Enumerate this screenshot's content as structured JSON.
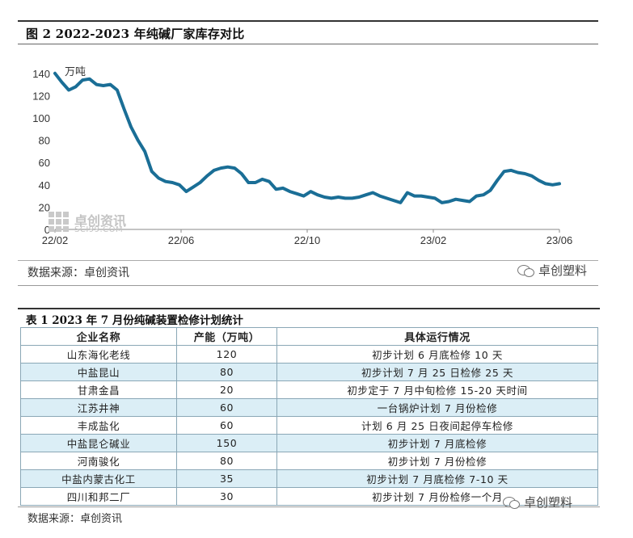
{
  "figure": {
    "title": "图 2   2022-2023 年纯碱厂家库存对比",
    "source": "数据来源：卓创资讯",
    "watermark_sci_cn": "卓创资讯",
    "watermark_sci_en": "SCI99.COM",
    "watermark_wechat": "卓创塑料"
  },
  "chart_data": {
    "type": "line",
    "title": "2022-2023 年纯碱厂家库存对比",
    "ylabel": "万吨",
    "ylim": [
      0,
      150
    ],
    "yticks": [
      0,
      20,
      40,
      60,
      80,
      100,
      120,
      140
    ],
    "x_tick_labels": [
      "22/02",
      "22/06",
      "22/10",
      "23/02",
      "23/06"
    ],
    "line_color": "#1a6e96",
    "series": [
      {
        "name": "纯碱厂家库存",
        "values": [
          140,
          132,
          125,
          128,
          134,
          135,
          130,
          129,
          130,
          125,
          108,
          92,
          80,
          70,
          52,
          46,
          43,
          42,
          40,
          34,
          38,
          42,
          48,
          53,
          55,
          56,
          55,
          50,
          42,
          42,
          45,
          43,
          36,
          37,
          34,
          32,
          30,
          34,
          31,
          29,
          28,
          29,
          28,
          28,
          29,
          31,
          33,
          30,
          28,
          26,
          24,
          33,
          30,
          30,
          29,
          28,
          24,
          25,
          27,
          26,
          25,
          30,
          31,
          35,
          44,
          52,
          53,
          51,
          50,
          48,
          44,
          41,
          40,
          41
        ]
      }
    ]
  },
  "table": {
    "title": "表 1  2023 年 7 月份纯碱装置检修计划统计",
    "headers": [
      "企业名称",
      "产能（万吨）",
      "具体运行情况"
    ],
    "rows": [
      {
        "name": "山东海化老线",
        "capacity": "120",
        "status": "初步计划 6 月底检修 10 天"
      },
      {
        "name": "中盐昆山",
        "capacity": "80",
        "status": "初步计划 7 月 25 日检修 25 天"
      },
      {
        "name": "甘肃金昌",
        "capacity": "20",
        "status": "初步定于 7 月中旬检修 15-20 天时间"
      },
      {
        "name": "江苏井神",
        "capacity": "60",
        "status": "一台锅炉计划 7 月份检修"
      },
      {
        "name": "丰成盐化",
        "capacity": "60",
        "status": "计划 6 月 25 日夜间起停车检修"
      },
      {
        "name": "中盐昆仑碱业",
        "capacity": "150",
        "status": "初步计划 7 月底检修"
      },
      {
        "name": "河南骏化",
        "capacity": "80",
        "status": "初步计划 7 月份检修"
      },
      {
        "name": "中盐内蒙古化工",
        "capacity": "35",
        "status": "初步计划 7 月底检修 7-10 天"
      },
      {
        "name": "四川和邦二厂",
        "capacity": "30",
        "status": "初步计划 7 月份检修一个月"
      }
    ],
    "source": "数据来源：卓创资讯",
    "watermark_wechat": "卓创塑料"
  }
}
